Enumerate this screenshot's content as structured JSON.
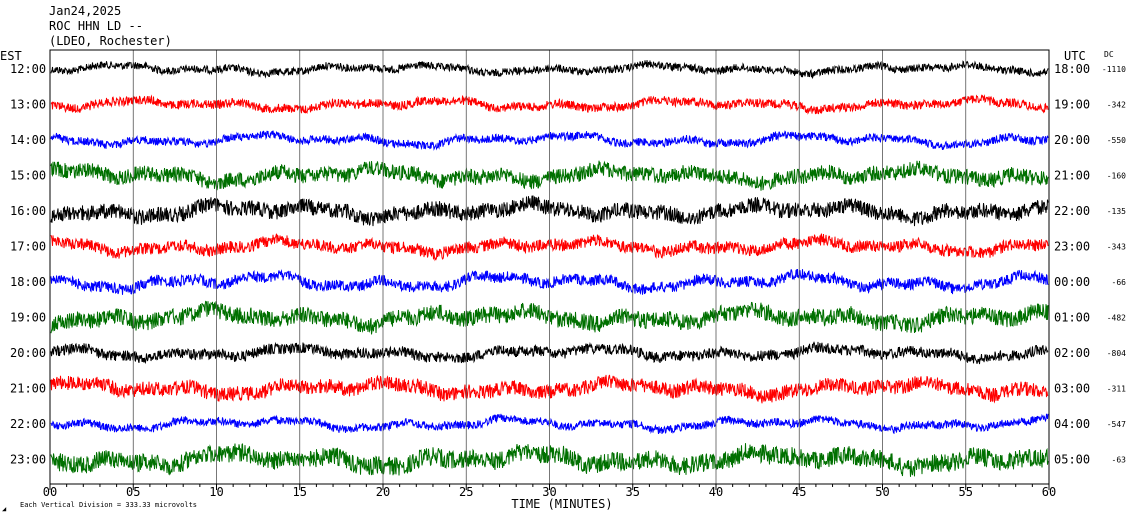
{
  "header": {
    "date": "Jan24,2025",
    "station": "ROC HHN LD --",
    "network": "(LDEO, Rochester)"
  },
  "left_axis_title": "EST",
  "right_axis_title": "UTC",
  "dc_title": "DC",
  "footer": {
    "scale_note": "Each Vertical Division =  333.33 microvolts",
    "mark": "◢"
  },
  "chart_data": {
    "type": "line",
    "title": "ROC HHN LD --",
    "xlabel": "TIME (MINUTES)",
    "ylabel": "",
    "xlim": [
      0,
      60
    ],
    "x_ticks": [
      "00",
      "05",
      "10",
      "15",
      "20",
      "25",
      "30",
      "35",
      "40",
      "45",
      "50",
      "55",
      "60"
    ],
    "minor_tick_interval": 1,
    "vertical_division_microvolts": 333.33,
    "color_cycle": [
      "#000000",
      "#ff0000",
      "#0000ff",
      "#007000"
    ],
    "rows": [
      {
        "est": "12:00",
        "utc": "18:00",
        "dc": "-1110",
        "color": "#000000",
        "amplitude": 7,
        "noise": 0.55
      },
      {
        "est": "13:00",
        "utc": "19:00",
        "dc": "-342",
        "color": "#ff0000",
        "amplitude": 8,
        "noise": 0.55
      },
      {
        "est": "14:00",
        "utc": "20:00",
        "dc": "-550",
        "color": "#0000ff",
        "amplitude": 9,
        "noise": 0.45
      },
      {
        "est": "15:00",
        "utc": "21:00",
        "dc": "-160",
        "color": "#007000",
        "amplitude": 11,
        "noise": 0.7
      },
      {
        "est": "16:00",
        "utc": "22:00",
        "dc": "-135",
        "color": "#000000",
        "amplitude": 11,
        "noise": 0.7
      },
      {
        "est": "17:00",
        "utc": "23:00",
        "dc": "-343",
        "color": "#ff0000",
        "amplitude": 10,
        "noise": 0.6
      },
      {
        "est": "18:00",
        "utc": "00:00",
        "dc": "-66",
        "color": "#0000ff",
        "amplitude": 12,
        "noise": 0.45
      },
      {
        "est": "19:00",
        "utc": "01:00",
        "dc": "-482",
        "color": "#007000",
        "amplitude": 12,
        "noise": 0.7
      },
      {
        "est": "20:00",
        "utc": "02:00",
        "dc": "-804",
        "color": "#000000",
        "amplitude": 9,
        "noise": 0.6
      },
      {
        "est": "21:00",
        "utc": "03:00",
        "dc": "-311",
        "color": "#ff0000",
        "amplitude": 11,
        "noise": 0.65
      },
      {
        "est": "22:00",
        "utc": "04:00",
        "dc": "-547",
        "color": "#0000ff",
        "amplitude": 9,
        "noise": 0.45
      },
      {
        "est": "23:00",
        "utc": "05:00",
        "dc": "-63",
        "color": "#007000",
        "amplitude": 13,
        "noise": 0.7
      }
    ]
  }
}
